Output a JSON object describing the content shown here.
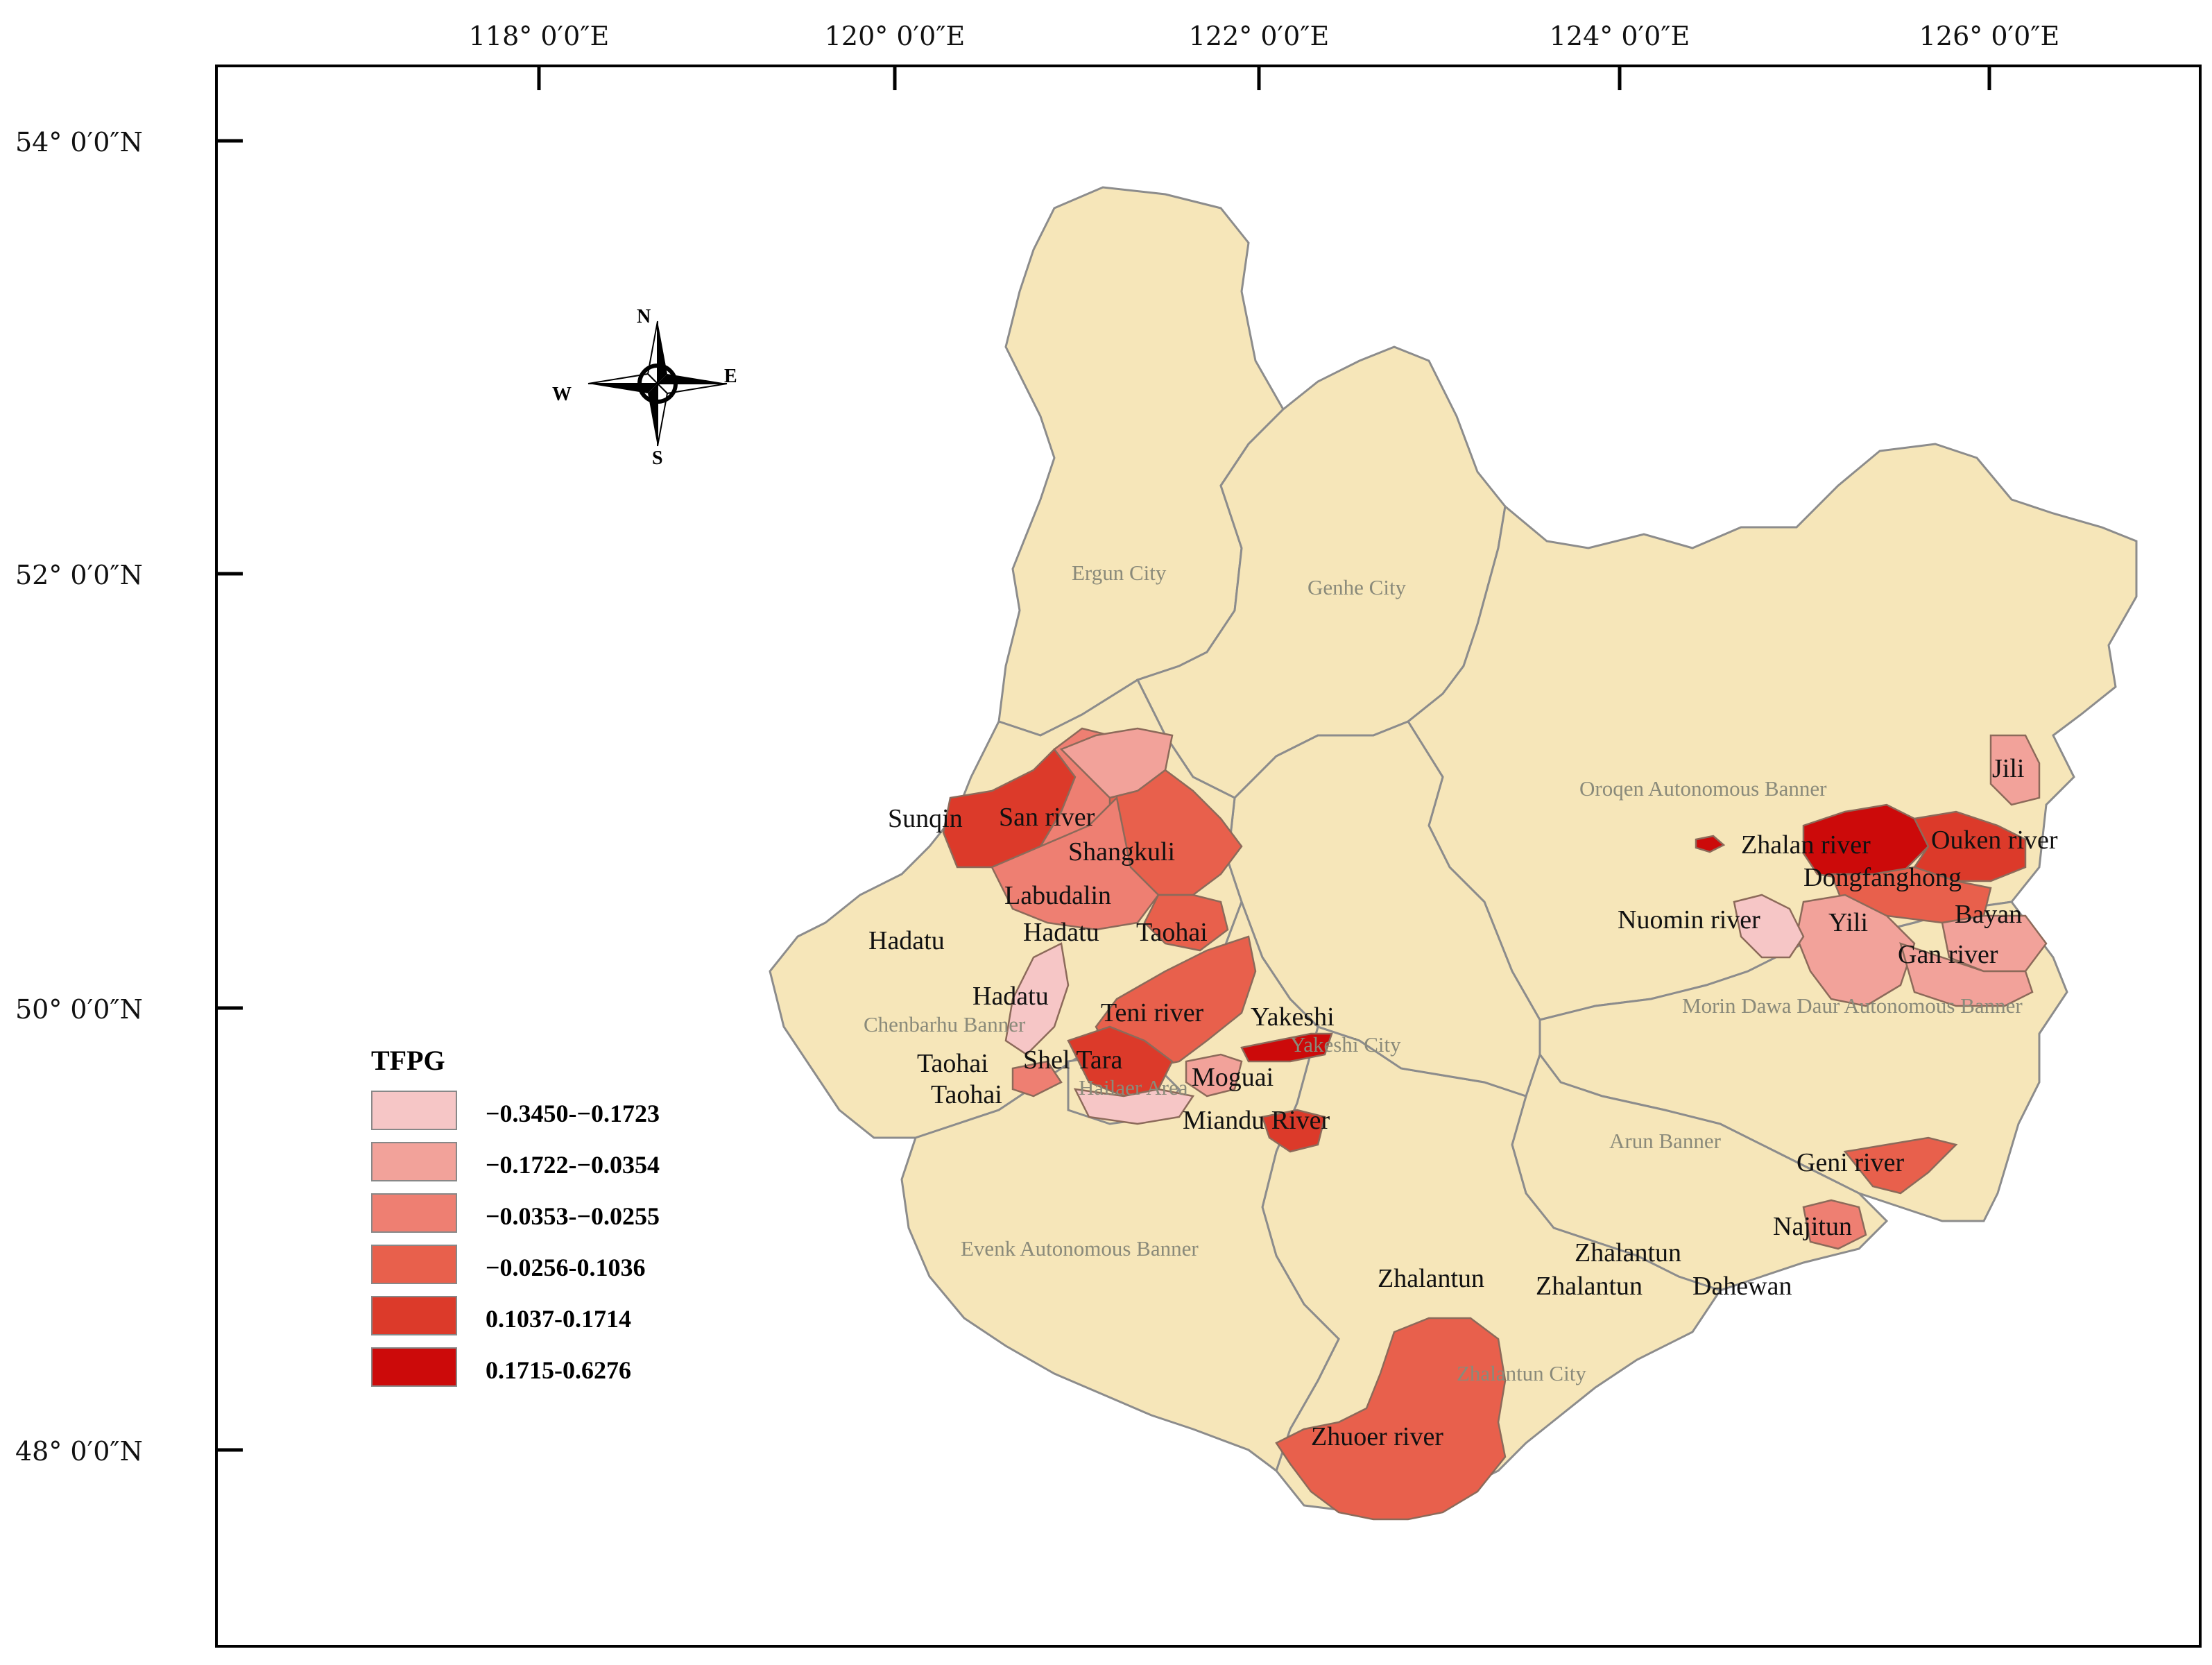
{
  "map": {
    "lon_ticks": [
      "118° 0′0″E",
      "120° 0′0″E",
      "122° 0′0″E",
      "124° 0′0″E",
      "126° 0′0″E"
    ],
    "lat_ticks": [
      "54° 0′0″N",
      "52° 0′0″N",
      "50° 0′0″N",
      "48° 0′0″N"
    ],
    "compass": {
      "n": "N",
      "s": "S",
      "e": "E",
      "w": "W"
    },
    "admin_regions": [
      "Ergun City",
      "Genhe City",
      "Oroqen Autonomous Banner",
      "Morin Dawa Daur Autonomous Banner",
      "Arun Banner",
      "Chenbarhu Banner",
      "Hailaer Area",
      "Yakeshi City",
      "Evenk Autonomous Banner",
      "Zhalantun City"
    ],
    "towns": [
      "Sunqin",
      "San river",
      "Shangkuli",
      "Labudalin",
      "Hadatu",
      "Hadatu",
      "Taohai",
      "Hadatu",
      "Teni river",
      "Yakeshi",
      "Taohai",
      "Shel Tara",
      "Taohai",
      "Moguai",
      "Miandu River",
      "Zhalan river",
      "Ouken river",
      "Jili",
      "Dongfanghong",
      "Nuomin river",
      "Yili",
      "Bayan",
      "Gan river",
      "Geni river",
      "Najitun",
      "Zhalantun",
      "Zhalantun",
      "Zhalantun",
      "Dahewan",
      "Zhuoer river"
    ],
    "legend": {
      "title": "TFPG",
      "classes": [
        {
          "label": "−0.3450-−0.1723",
          "color": "#f6c6c6"
        },
        {
          "label": "−0.1722-−0.0354",
          "color": "#f2a29a"
        },
        {
          "label": "−0.0353-−0.0255",
          "color": "#ee7f72"
        },
        {
          "label": "−0.0256-0.1036",
          "color": "#e8604c"
        },
        {
          "label": "0.1037-0.1714",
          "color": "#dc3a2a"
        },
        {
          "label": "0.1715-0.6276",
          "color": "#cc0a0a"
        }
      ]
    },
    "base_color": "#f6e6b9",
    "boundary_color": "#8c8c8c"
  }
}
